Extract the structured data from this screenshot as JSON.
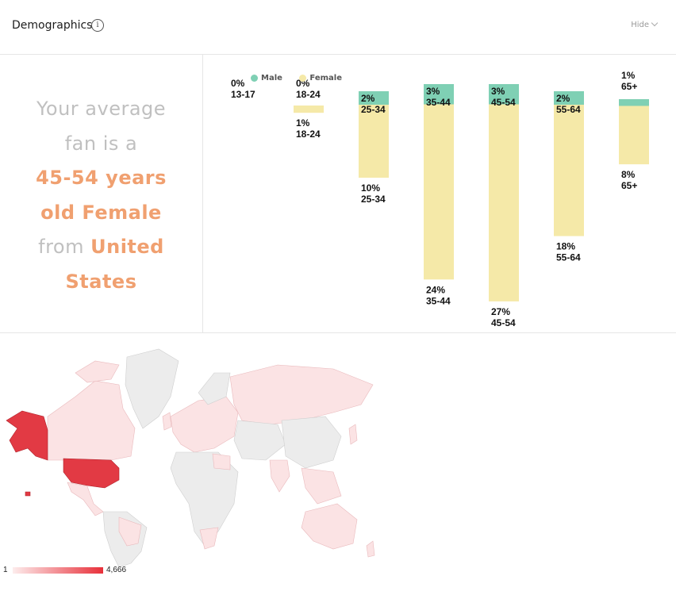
{
  "header": {
    "title": "Demographics",
    "info_icon": "info-icon",
    "info_glyph": "i",
    "hide_label": "Hide"
  },
  "summary": {
    "line1": "Your average",
    "line2": "fan is a",
    "line3": "45-54 years",
    "line4": "old Female",
    "line5_pre": "from",
    "line5_hl": "United",
    "line6": "States",
    "accent_color": "#f0a070",
    "muted_color": "#c0c0c0"
  },
  "chart_data": {
    "type": "bar",
    "categories": [
      "13-17",
      "18-24",
      "25-34",
      "35-44",
      "45-54",
      "55-64",
      "65+"
    ],
    "series": [
      {
        "name": "Male",
        "values": [
          0,
          0,
          2,
          3,
          3,
          2,
          1
        ],
        "labels": [
          "0%",
          "0%",
          "2%",
          "3%",
          "3%",
          "2%",
          "1%"
        ],
        "color": "#7fd0b4"
      },
      {
        "name": "Female",
        "values": [
          0,
          1,
          10,
          24,
          27,
          18,
          8
        ],
        "labels": [
          "0%",
          "1%",
          "10%",
          "24%",
          "27%",
          "18%",
          "8%"
        ],
        "color": "#f5e9a8"
      }
    ],
    "legend_position": "top-left",
    "grid": false
  },
  "map": {
    "scale_min": "1",
    "scale_max": "4,666",
    "scale_low_color": "#fdecec",
    "scale_high_color": "#e8303a",
    "highlight_country": "United States"
  }
}
